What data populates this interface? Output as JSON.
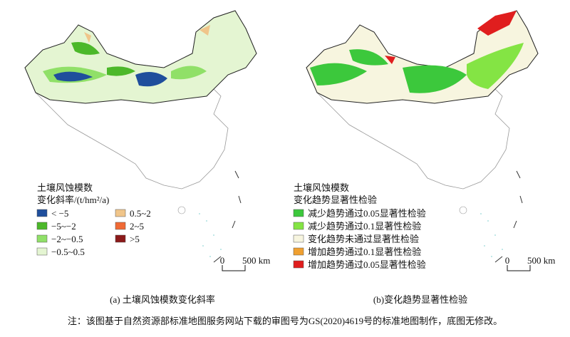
{
  "panel_a": {
    "legend_title": [
      "土壤风蚀模数",
      "变化斜率/(t/hm²/a)"
    ],
    "legend_items": [
      {
        "label": "< −5",
        "color": "#1f4e9c"
      },
      {
        "label": "−5~−2",
        "color": "#4cb82a"
      },
      {
        "label": "−2~−0.5",
        "color": "#90e068"
      },
      {
        "label": "−0.5~0.5",
        "color": "#e4f5d2"
      },
      {
        "label": "0.5~2",
        "color": "#f0c58a"
      },
      {
        "label": "2~5",
        "color": "#f06a35"
      },
      {
        "label": ">5",
        "color": "#8b1a1a"
      }
    ],
    "scale": [
      "0",
      "500 km"
    ],
    "caption": "(a) 土壤风蚀模数变化斜率"
  },
  "panel_b": {
    "legend_title": [
      "土壤风蚀模数",
      "变化趋势显著性检验"
    ],
    "legend_items": [
      {
        "label": "减少趋势通过0.05显著性检验",
        "color": "#3cc83c"
      },
      {
        "label": "减少趋势通过0.1显著性检验",
        "color": "#84e444"
      },
      {
        "label": "变化趋势未通过显著性检验",
        "color": "#f7f5df"
      },
      {
        "label": "增加趋势通过0.1显著性检验",
        "color": "#f0a030"
      },
      {
        "label": "增加趋势通过0.05显著性检验",
        "color": "#e01e1e"
      }
    ],
    "scale": [
      "0",
      "500 km"
    ],
    "caption": "(b)变化趋势显著性检验"
  },
  "note": "注：该图基于自然资源部标准地图服务网站下载的审图号为GS(2020)4619号的标准地图制作，底图无修改。"
}
